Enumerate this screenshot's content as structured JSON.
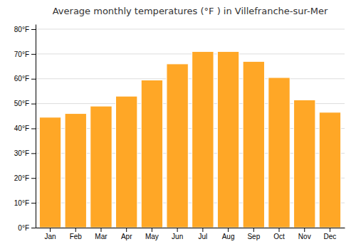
{
  "chart_data": {
    "type": "bar",
    "title": "Average monthly temperatures (°F ) in Villefranche-sur-Mer",
    "categories": [
      "Jan",
      "Feb",
      "Mar",
      "Apr",
      "May",
      "Jun",
      "Jul",
      "Aug",
      "Sep",
      "Oct",
      "Nov",
      "Dec"
    ],
    "values": [
      44.5,
      46.0,
      49.0,
      53.0,
      59.5,
      66.0,
      71.0,
      71.0,
      67.0,
      60.5,
      51.5,
      46.5
    ],
    "color": "#FFA726",
    "ylim": [
      0,
      82
    ],
    "yticks": [
      {
        "value": 0,
        "label": "0°F"
      },
      {
        "value": 10,
        "label": "10°F"
      },
      {
        "value": 20,
        "label": "20°F"
      },
      {
        "value": 30,
        "label": "30°F"
      },
      {
        "value": 40,
        "label": "40°F"
      },
      {
        "value": 50,
        "label": "50°F"
      },
      {
        "value": 60,
        "label": "60°F"
      },
      {
        "value": 70,
        "label": "70°F"
      },
      {
        "value": 80,
        "label": "80°F"
      }
    ],
    "grid": true
  }
}
